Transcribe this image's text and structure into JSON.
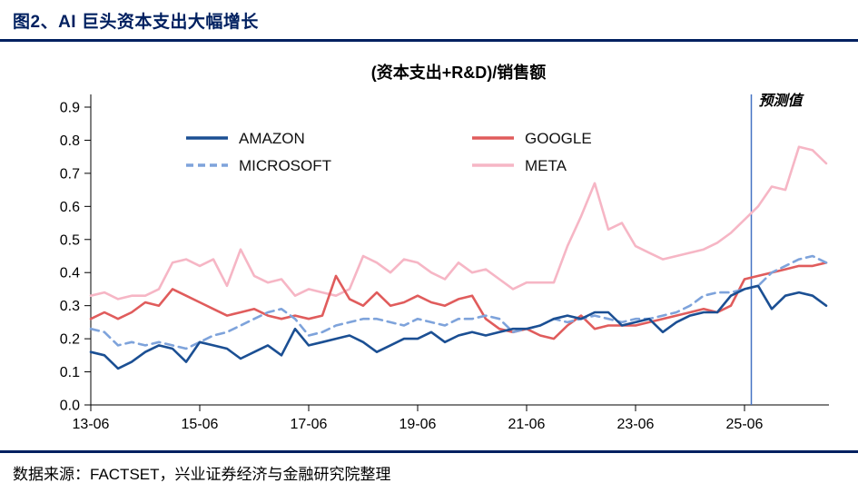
{
  "header": {
    "title": "图2、AI 巨头资本支出大幅增长"
  },
  "footer": {
    "source": "数据来源：FACTSET，兴业证券经济与金融研究院整理"
  },
  "colors": {
    "title_navy": "#002060",
    "rule_navy": "#002060",
    "axis": "#000000",
    "forecast_line": "#4472c4"
  },
  "chart_data": {
    "type": "line",
    "title": "(资本支出+R&D)/销售额",
    "x_tick_labels": [
      "13-06",
      "15-06",
      "17-06",
      "19-06",
      "21-06",
      "23-06",
      "25-06"
    ],
    "x_tick_indices": [
      0,
      8,
      16,
      24,
      32,
      40,
      48
    ],
    "x_start": "2013-06",
    "x_freq": "quarterly",
    "n_points": 55,
    "ylim": [
      0,
      0.9
    ],
    "y_tick_step": 0.1,
    "grid": false,
    "legend_position": "top-inside",
    "legend_order": [
      "AMAZON",
      "GOOGLE",
      "MICROSOFT",
      "META"
    ],
    "forecast_label": "预测值",
    "forecast_index": 48.5,
    "series": [
      {
        "name": "AMAZON",
        "color": "#1b4f93",
        "dash": "solid",
        "width": 2.6,
        "values": [
          0.16,
          0.15,
          0.11,
          0.13,
          0.16,
          0.18,
          0.17,
          0.13,
          0.19,
          0.18,
          0.17,
          0.14,
          0.16,
          0.18,
          0.15,
          0.23,
          0.18,
          0.19,
          0.2,
          0.21,
          0.19,
          0.16,
          0.18,
          0.2,
          0.2,
          0.22,
          0.19,
          0.21,
          0.22,
          0.21,
          0.22,
          0.23,
          0.23,
          0.24,
          0.26,
          0.27,
          0.26,
          0.28,
          0.28,
          0.24,
          0.25,
          0.26,
          0.22,
          0.25,
          0.27,
          0.28,
          0.28,
          0.33,
          0.35,
          0.36,
          0.29,
          0.33,
          0.34,
          0.33,
          0.3
        ]
      },
      {
        "name": "MICROSOFT",
        "color": "#7ea3db",
        "dash": "dashed",
        "width": 2.6,
        "values": [
          0.23,
          0.22,
          0.18,
          0.19,
          0.18,
          0.19,
          0.18,
          0.17,
          0.19,
          0.21,
          0.22,
          0.24,
          0.26,
          0.28,
          0.29,
          0.26,
          0.21,
          0.22,
          0.24,
          0.25,
          0.26,
          0.26,
          0.25,
          0.24,
          0.26,
          0.25,
          0.24,
          0.26,
          0.26,
          0.27,
          0.26,
          0.22,
          0.23,
          0.24,
          0.26,
          0.25,
          0.26,
          0.27,
          0.26,
          0.25,
          0.26,
          0.26,
          0.27,
          0.28,
          0.3,
          0.33,
          0.34,
          0.34,
          0.35,
          0.36,
          0.4,
          0.42,
          0.44,
          0.45,
          0.43
        ]
      },
      {
        "name": "GOOGLE",
        "color": "#e05c5c",
        "dash": "solid",
        "width": 2.6,
        "values": [
          0.26,
          0.28,
          0.26,
          0.28,
          0.31,
          0.3,
          0.35,
          0.33,
          0.31,
          0.29,
          0.27,
          0.28,
          0.29,
          0.27,
          0.26,
          0.27,
          0.26,
          0.27,
          0.39,
          0.32,
          0.3,
          0.34,
          0.3,
          0.31,
          0.33,
          0.31,
          0.3,
          0.32,
          0.33,
          0.26,
          0.23,
          0.22,
          0.23,
          0.21,
          0.2,
          0.24,
          0.27,
          0.23,
          0.24,
          0.24,
          0.24,
          0.25,
          0.26,
          0.27,
          0.28,
          0.29,
          0.28,
          0.3,
          0.38,
          0.39,
          0.4,
          0.41,
          0.42,
          0.42,
          0.43
        ]
      },
      {
        "name": "META",
        "color": "#f6b6c5",
        "dash": "solid",
        "width": 2.6,
        "values": [
          0.33,
          0.34,
          0.32,
          0.33,
          0.33,
          0.35,
          0.43,
          0.44,
          0.42,
          0.44,
          0.36,
          0.47,
          0.39,
          0.37,
          0.38,
          0.33,
          0.35,
          0.34,
          0.33,
          0.35,
          0.45,
          0.43,
          0.4,
          0.44,
          0.43,
          0.4,
          0.38,
          0.43,
          0.4,
          0.41,
          0.38,
          0.35,
          0.37,
          0.37,
          0.37,
          0.48,
          0.57,
          0.67,
          0.53,
          0.55,
          0.48,
          0.46,
          0.44,
          0.45,
          0.46,
          0.47,
          0.49,
          0.52,
          0.56,
          0.6,
          0.66,
          0.65,
          0.78,
          0.77,
          0.73
        ]
      }
    ]
  }
}
